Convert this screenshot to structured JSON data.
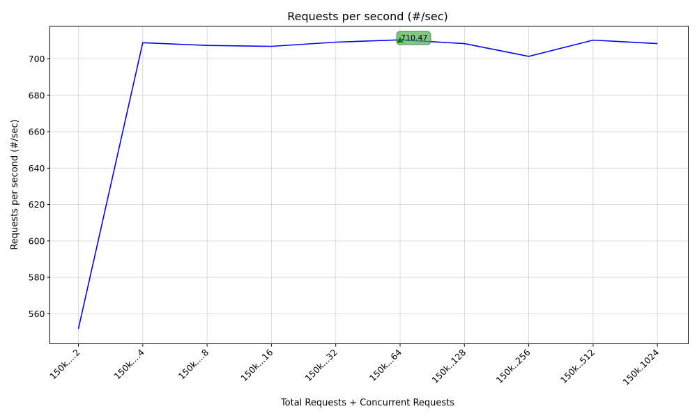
{
  "chart_data": {
    "type": "line",
    "title": "Requests per second (#/sec)",
    "xlabel": "Total Requests + Concurrent Requests",
    "ylabel": "Requests per second (#/sec)",
    "categories": [
      "150k....2",
      "150k....4",
      "150k....8",
      "150k...16",
      "150k...32",
      "150k...64",
      "150k..128",
      "150k..256",
      "150k..512",
      "150k.1024"
    ],
    "series": [
      {
        "color": "#0000ff",
        "values": [
          551.8,
          708.9,
          707.4,
          706.9,
          709.2,
          710.47,
          708.4,
          701.4,
          710.3,
          708.4
        ]
      }
    ],
    "yticks": [
      560,
      580,
      600,
      620,
      640,
      660,
      680,
      700
    ],
    "ylim": [
      543.5,
      718
    ],
    "grid": true,
    "annotation": {
      "index": 5,
      "text": "710.47",
      "box_color": "#4caf50",
      "marker_color": "#008000"
    }
  }
}
